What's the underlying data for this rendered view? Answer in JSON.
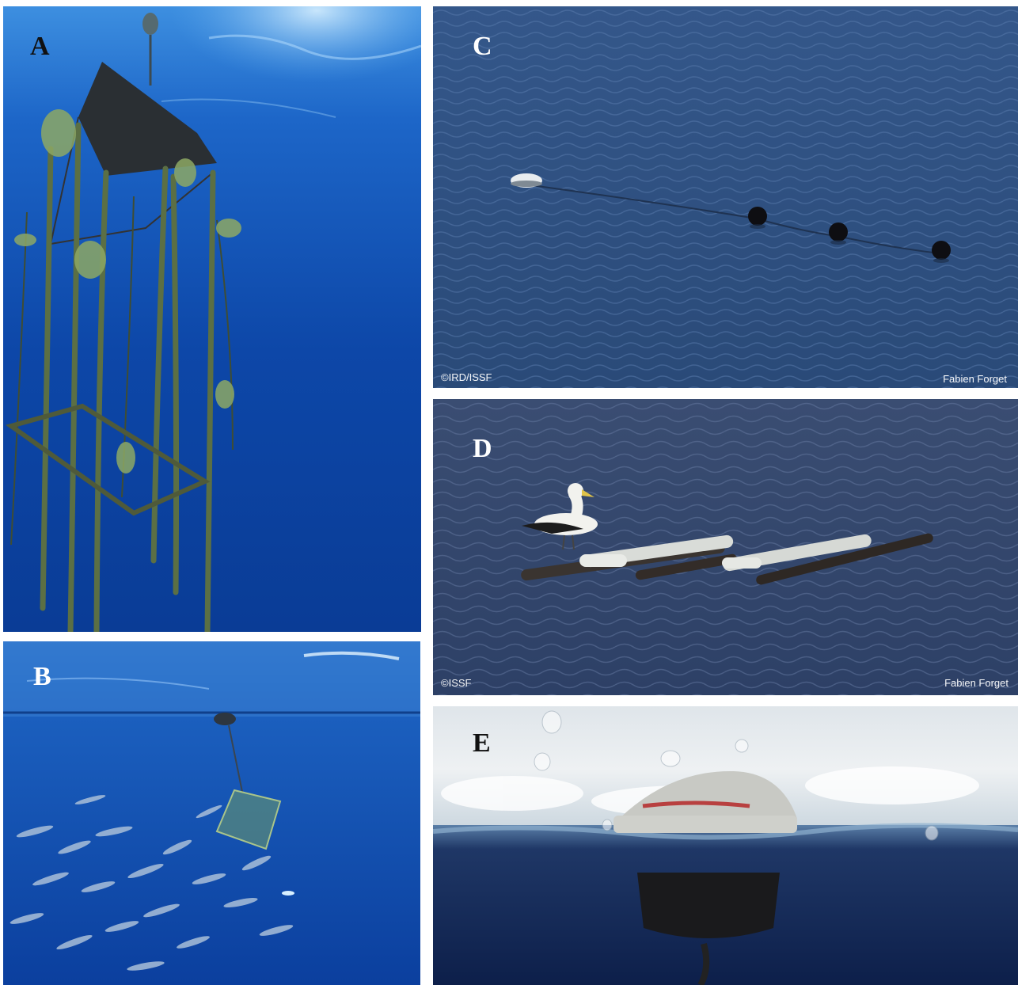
{
  "panels": {
    "a": {
      "letter": "A"
    },
    "b": {
      "letter": "B"
    },
    "c": {
      "letter": "C",
      "credit_left": "©IRD/ISSF",
      "credit_right": "Fabien Forget"
    },
    "d": {
      "letter": "D",
      "credit_left": "©ISSF",
      "credit_right": "Fabien Forget"
    },
    "e": {
      "letter": "E"
    }
  },
  "colors": {
    "deep_ocean": "#0a3fa0",
    "surface_ocean": "#2a78d0",
    "sea_surface_c": "#2c4f80",
    "sea_surface_d": "#34496e",
    "sky_e": "#e7ecef",
    "algae": "#7c9a52"
  }
}
